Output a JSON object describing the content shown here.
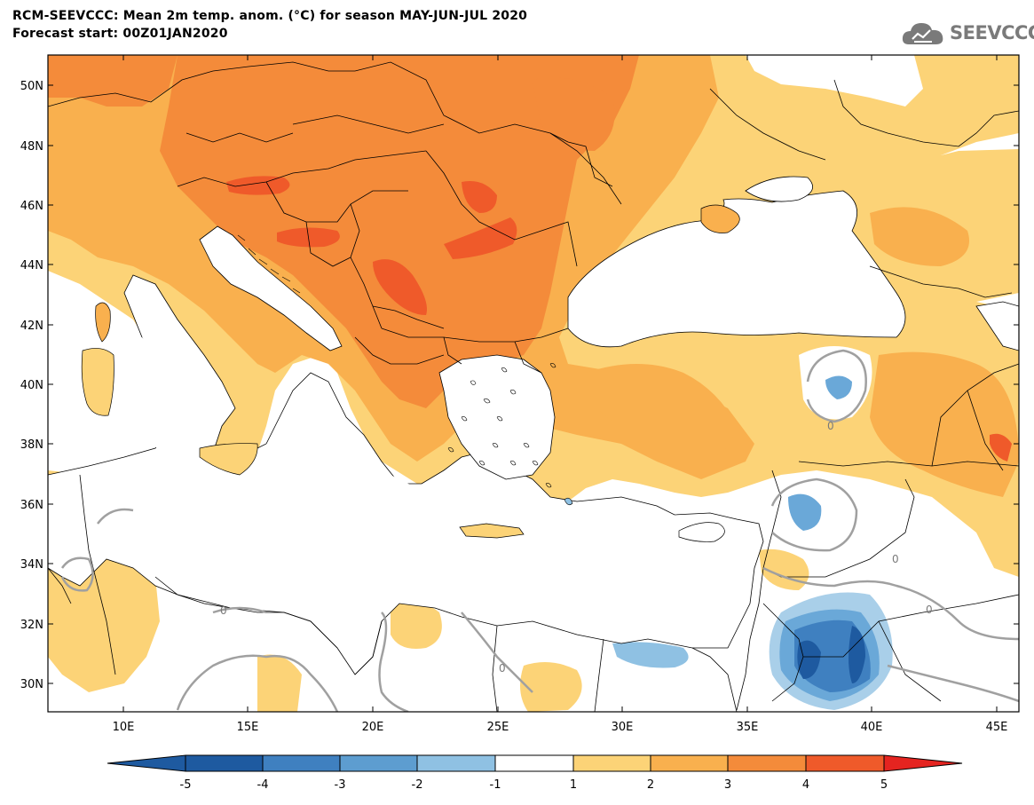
{
  "header": {
    "title_line1": "RCM-SEEVCCC: Mean 2m temp. anom. (°C) for season MAY-JUN-JUL 2020",
    "title_line2": "Forecast start: 00Z01JAN2020",
    "logo_text": "SEEVCCC"
  },
  "map": {
    "lat_labels": [
      "50N",
      "48N",
      "46N",
      "44N",
      "42N",
      "40N",
      "38N",
      "36N",
      "34N",
      "32N",
      "30N"
    ],
    "lon_labels": [
      "10E",
      "15E",
      "20E",
      "25E",
      "30E",
      "35E",
      "40E",
      "45E"
    ],
    "contour_labels": [
      "0",
      "0",
      "0",
      "0",
      "0"
    ]
  },
  "colorbar": {
    "labels": [
      "-5",
      "-4",
      "-3",
      "-2",
      "-1",
      "1",
      "2",
      "3",
      "4",
      "5"
    ],
    "colors": [
      "#1e5aa0",
      "#3f80c0",
      "#5d9dd0",
      "#8fc1e3",
      "#ffffff",
      "#fcd377",
      "#f9b04e",
      "#f48b3a",
      "#ef5a2a",
      "#e52420"
    ]
  },
  "palette": {
    "plus1": "#fcd377",
    "plus2": "#f9b04e",
    "plus3": "#f48b3a",
    "plus4": "#ef5a2a",
    "minus1": "#a9cfe9",
    "minus2": "#6aa8d8",
    "minus3": "#3f80c0",
    "minus4": "#1e5aa0",
    "zero_contour": "#a0a0a0"
  }
}
